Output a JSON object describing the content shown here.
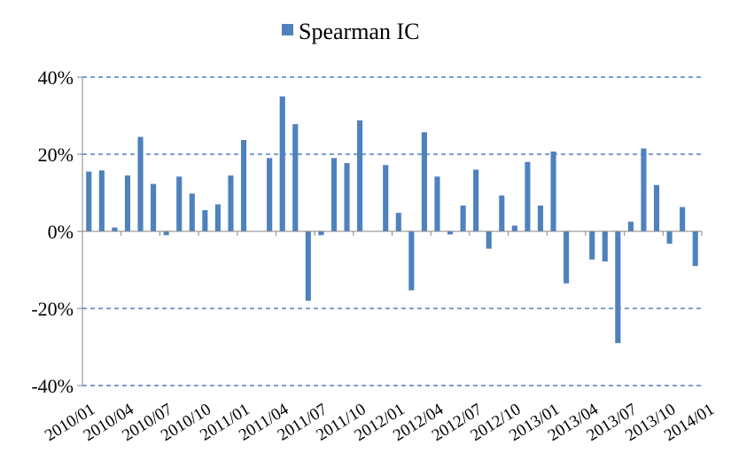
{
  "chart_data": {
    "type": "bar",
    "series": [
      {
        "name": "Spearman IC",
        "color": "#4f81bd",
        "values": [
          15.5,
          15.8,
          1.0,
          14.5,
          24.5,
          12.3,
          -1.0,
          14.2,
          9.8,
          5.5,
          7.0,
          14.5,
          23.7,
          0.0,
          19.0,
          35.0,
          27.8,
          -18.0,
          -1.0,
          19.0,
          17.7,
          28.8,
          0.0,
          17.2,
          4.8,
          -15.3,
          25.7,
          14.2,
          -0.8,
          6.7,
          16.0,
          -4.5,
          9.3,
          1.5,
          18.0,
          6.7,
          20.7,
          -13.5,
          0.0,
          -7.3,
          -7.8,
          -29.0,
          2.5,
          21.5,
          12.0,
          -3.2,
          6.3,
          -9.0
        ]
      }
    ],
    "x_tick_labels": [
      "2010/01",
      "2010/04",
      "2010/07",
      "2010/10",
      "2011/01",
      "2011/04",
      "2011/07",
      "2011/10",
      "2012/01",
      "2012/04",
      "2012/07",
      "2012/10",
      "2013/01",
      "2013/04",
      "2013/07",
      "2013/10",
      "2014/01"
    ],
    "y_tick_labels": [
      "40%",
      "20%",
      "0%",
      "-20%",
      "-40%"
    ],
    "y_ticks": [
      40,
      20,
      0,
      -20,
      -40
    ],
    "ylim": [
      -40,
      40
    ],
    "grid": "horizontal dashed",
    "legend": "top-center",
    "title": "",
    "xlabel": "",
    "ylabel": ""
  }
}
